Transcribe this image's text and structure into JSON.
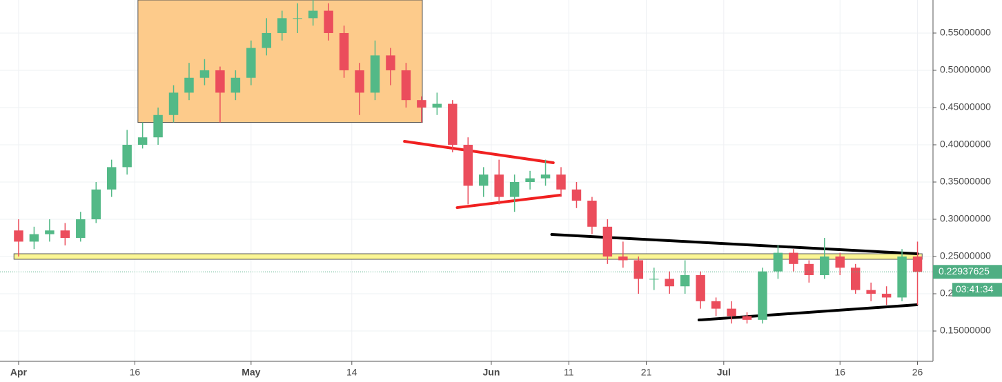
{
  "chart_data": {
    "type": "candlestick",
    "x": [
      0,
      2,
      4,
      6,
      8,
      10,
      12,
      14,
      16,
      18,
      20,
      22,
      24,
      26,
      28,
      30,
      32,
      34,
      36,
      38,
      40,
      42,
      44,
      46,
      48,
      50,
      52,
      54,
      56,
      58,
      60,
      62,
      64,
      66,
      68,
      70,
      72,
      74,
      76,
      78,
      80,
      82,
      84,
      86,
      88,
      90,
      92,
      94,
      96,
      98,
      100,
      102,
      104,
      106,
      108,
      110,
      112,
      114,
      116
    ],
    "open": [
      0.285,
      0.27,
      0.28,
      0.285,
      0.275,
      0.3,
      0.34,
      0.37,
      0.4,
      0.41,
      0.44,
      0.47,
      0.49,
      0.5,
      0.47,
      0.49,
      0.53,
      0.55,
      0.57,
      0.57,
      0.58,
      0.55,
      0.5,
      0.47,
      0.52,
      0.5,
      0.46,
      0.45,
      0.455,
      0.4,
      0.345,
      0.36,
      0.33,
      0.35,
      0.355,
      0.36,
      0.34,
      0.325,
      0.29,
      0.25,
      0.245,
      0.22,
      0.22,
      0.21,
      0.225,
      0.19,
      0.18,
      0.17,
      0.165,
      0.23,
      0.255,
      0.24,
      0.225,
      0.25,
      0.235,
      0.205,
      0.2,
      0.195,
      0.25
    ],
    "high": [
      0.3,
      0.29,
      0.3,
      0.295,
      0.31,
      0.35,
      0.38,
      0.42,
      0.43,
      0.45,
      0.48,
      0.51,
      0.515,
      0.505,
      0.5,
      0.54,
      0.57,
      0.58,
      0.59,
      0.595,
      0.59,
      0.56,
      0.51,
      0.54,
      0.53,
      0.51,
      0.465,
      0.47,
      0.46,
      0.41,
      0.37,
      0.38,
      0.36,
      0.365,
      0.38,
      0.37,
      0.35,
      0.33,
      0.3,
      0.27,
      0.25,
      0.235,
      0.23,
      0.245,
      0.23,
      0.195,
      0.19,
      0.175,
      0.235,
      0.265,
      0.26,
      0.245,
      0.275,
      0.255,
      0.24,
      0.215,
      0.21,
      0.26,
      0.27
    ],
    "low": [
      0.25,
      0.26,
      0.27,
      0.265,
      0.27,
      0.295,
      0.33,
      0.36,
      0.395,
      0.4,
      0.43,
      0.46,
      0.48,
      0.43,
      0.46,
      0.48,
      0.52,
      0.54,
      0.55,
      0.56,
      0.54,
      0.49,
      0.44,
      0.46,
      0.48,
      0.45,
      0.43,
      0.44,
      0.39,
      0.32,
      0.33,
      0.32,
      0.31,
      0.34,
      0.345,
      0.33,
      0.315,
      0.28,
      0.24,
      0.235,
      0.2,
      0.205,
      0.2,
      0.2,
      0.18,
      0.17,
      0.16,
      0.16,
      0.16,
      0.22,
      0.23,
      0.215,
      0.22,
      0.225,
      0.2,
      0.19,
      0.185,
      0.19,
      0.185
    ],
    "close": [
      0.27,
      0.28,
      0.285,
      0.275,
      0.3,
      0.34,
      0.37,
      0.4,
      0.41,
      0.44,
      0.47,
      0.49,
      0.5,
      0.47,
      0.49,
      0.53,
      0.55,
      0.57,
      0.57,
      0.58,
      0.55,
      0.5,
      0.47,
      0.52,
      0.5,
      0.46,
      0.45,
      0.455,
      0.4,
      0.345,
      0.36,
      0.33,
      0.35,
      0.355,
      0.36,
      0.34,
      0.325,
      0.29,
      0.25,
      0.245,
      0.22,
      0.22,
      0.21,
      0.225,
      0.19,
      0.18,
      0.17,
      0.165,
      0.23,
      0.255,
      0.24,
      0.225,
      0.25,
      0.235,
      0.205,
      0.2,
      0.195,
      0.25,
      0.22937625
    ],
    "up_color": "#53b987",
    "down_color": "#eb4d5c",
    "last_price": 0.22937625,
    "countdown": "03:41:34",
    "last_price_color": "#4fae83",
    "xlim": [
      -2.4,
      118
    ],
    "ylim": [
      0.1093,
      0.5944
    ],
    "xticks": [
      {
        "value": 0,
        "label": "Apr"
      },
      {
        "value": 15,
        "label": "16"
      },
      {
        "value": 30,
        "label": "May"
      },
      {
        "value": 43,
        "label": "14"
      },
      {
        "value": 61,
        "label": "Jun"
      },
      {
        "value": 71,
        "label": "11"
      },
      {
        "value": 81,
        "label": "21"
      },
      {
        "value": 91,
        "label": "Jul"
      },
      {
        "value": 106,
        "label": "16"
      },
      {
        "value": 116,
        "label": "26"
      }
    ],
    "yticks": [
      {
        "value": 0.15,
        "label": "0.15000000"
      },
      {
        "value": 0.2,
        "label": "0.20000000"
      },
      {
        "value": 0.25,
        "label": "0.25000000"
      },
      {
        "value": 0.3,
        "label": "0.30000000"
      },
      {
        "value": 0.35,
        "label": "0.35000000"
      },
      {
        "value": 0.4,
        "label": "0.40000000"
      },
      {
        "value": 0.45,
        "label": "0.45000000"
      },
      {
        "value": 0.5,
        "label": "0.50000000"
      },
      {
        "value": 0.55,
        "label": "0.55000000"
      }
    ],
    "grid": true,
    "annotations": [
      {
        "kind": "rect",
        "x": [
          15.4,
          52.1
        ],
        "y": [
          0.5944,
          0.43
        ],
        "color": "#fdc885"
      },
      {
        "kind": "rect",
        "x": [
          -0.6,
          116.6
        ],
        "y": [
          0.2537,
          0.2463
        ],
        "color": "#fbf58e"
      },
      {
        "kind": "line",
        "x": [
          49.8,
          69.0
        ],
        "y": [
          0.4046,
          0.3759
        ],
        "color": "#f02020"
      },
      {
        "kind": "line",
        "x": [
          56.6,
          69.9
        ],
        "y": [
          0.3157,
          0.3324
        ],
        "color": "#f02020"
      },
      {
        "kind": "line",
        "x": [
          68.8,
          116.0
        ],
        "y": [
          0.2796,
          0.2537
        ],
        "color": "#000000"
      },
      {
        "kind": "line",
        "x": [
          87.8,
          115.9
        ],
        "y": [
          0.1648,
          0.1852
        ],
        "color": "#000000"
      }
    ]
  }
}
